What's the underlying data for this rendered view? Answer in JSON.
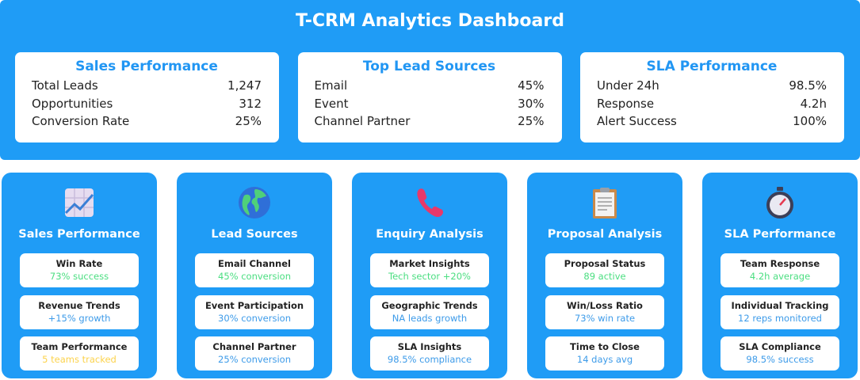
{
  "title": "T-CRM Analytics Dashboard",
  "summary": [
    {
      "title": "Sales Performance",
      "rows": [
        {
          "label": "Total Leads",
          "value": "1,247"
        },
        {
          "label": "Opportunities",
          "value": "312"
        },
        {
          "label": "Conversion Rate",
          "value": "25%"
        }
      ]
    },
    {
      "title": "Top Lead Sources",
      "rows": [
        {
          "label": "Email",
          "value": "45%"
        },
        {
          "label": "Event",
          "value": "30%"
        },
        {
          "label": "Channel Partner",
          "value": "25%"
        }
      ]
    },
    {
      "title": "SLA Performance",
      "rows": [
        {
          "label": "Under 24h",
          "value": "98.5%"
        },
        {
          "label": "Response",
          "value": "4.2h"
        },
        {
          "label": "Alert Success",
          "value": "100%"
        }
      ]
    }
  ],
  "colors": {
    "accent": "#1f9cf6",
    "green": "#4ade80",
    "blue": "#3d9be9",
    "yellow": "#fcd34d"
  },
  "cards": [
    {
      "title": "Sales Performance",
      "icon": "chart-increasing-icon",
      "items": [
        {
          "name": "Win Rate",
          "value": "73% success",
          "tone": "g"
        },
        {
          "name": "Revenue Trends",
          "value": "+15% growth",
          "tone": "b"
        },
        {
          "name": "Team Performance",
          "value": "5 teams tracked",
          "tone": "y"
        }
      ]
    },
    {
      "title": "Lead Sources",
      "icon": "globe-icon",
      "items": [
        {
          "name": "Email Channel",
          "value": "45% conversion",
          "tone": "g"
        },
        {
          "name": "Event Participation",
          "value": "30% conversion",
          "tone": "b"
        },
        {
          "name": "Channel Partner",
          "value": "25% conversion",
          "tone": "b"
        }
      ]
    },
    {
      "title": "Enquiry Analysis",
      "icon": "telephone-icon",
      "items": [
        {
          "name": "Market Insights",
          "value": "Tech sector +20%",
          "tone": "g"
        },
        {
          "name": "Geographic Trends",
          "value": "NA leads growth",
          "tone": "b"
        },
        {
          "name": "SLA Insights",
          "value": "98.5% compliance",
          "tone": "b"
        }
      ]
    },
    {
      "title": "Proposal Analysis",
      "icon": "clipboard-icon",
      "items": [
        {
          "name": "Proposal Status",
          "value": "89 active",
          "tone": "g"
        },
        {
          "name": "Win/Loss Ratio",
          "value": "73% win rate",
          "tone": "b"
        },
        {
          "name": "Time to Close",
          "value": "14 days avg",
          "tone": "b"
        }
      ]
    },
    {
      "title": "SLA Performance",
      "icon": "stopwatch-icon",
      "items": [
        {
          "name": "Team Response",
          "value": "4.2h average",
          "tone": "g"
        },
        {
          "name": "Individual Tracking",
          "value": "12 reps monitored",
          "tone": "b"
        },
        {
          "name": "SLA Compliance",
          "value": "98.5% success",
          "tone": "b"
        }
      ]
    }
  ]
}
